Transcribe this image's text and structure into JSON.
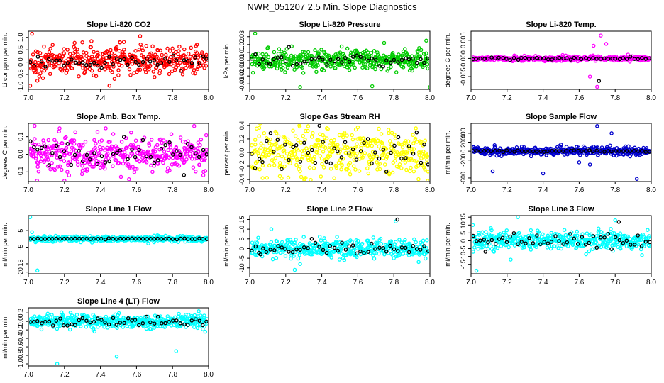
{
  "figure": {
    "title": "NWR_051207  2.5 Min. Slope Diagnostics"
  },
  "chart_data": [
    {
      "type": "scatter",
      "title": "Slope Li-820 CO2",
      "xlabel": "",
      "ylabel": "Li cor ppm per min.",
      "xlim": [
        7.0,
        8.0
      ],
      "ylim": [
        -1.1,
        1.25
      ],
      "x_ticks": [
        7.0,
        7.2,
        7.4,
        7.6,
        7.8,
        8.0
      ],
      "x_tick_labels": [
        "7.0",
        "7.2",
        "7.4",
        "7.6",
        "7.8",
        "8.0"
      ],
      "y_ticks": [
        -1.0,
        -0.5,
        0.0,
        0.5,
        1.0
      ],
      "y_tick_labels": [
        "-1.0",
        "-0.5",
        "0.0",
        "0.5",
        "1.0"
      ],
      "series": [
        {
          "color": "#ff0000",
          "n": 420,
          "center": 0.05,
          "spread": 0.28,
          "outliers": [
            [
              7.01,
              -0.95
            ],
            [
              7.02,
              1.15
            ],
            [
              7.45,
              -0.95
            ],
            [
              7.62,
              1.05
            ],
            [
              7.35,
              0.85
            ],
            [
              7.05,
              -0.75
            ]
          ]
        },
        {
          "color": "#000000",
          "n": 48,
          "center": 0.0,
          "spread": 0.12,
          "outliers": []
        }
      ]
    },
    {
      "type": "scatter",
      "title": "Slope Li-820 Pressure",
      "xlabel": "",
      "ylabel": "kPa per min.",
      "xlim": [
        7.0,
        8.0
      ],
      "ylim": [
        -0.037,
        0.037
      ],
      "x_ticks": [
        7.0,
        7.2,
        7.4,
        7.6,
        7.8,
        8.0
      ],
      "x_tick_labels": [
        "7.0",
        "7.2",
        "7.4",
        "7.6",
        "7.8",
        "8.0"
      ],
      "y_ticks": [
        -0.03,
        -0.02,
        -0.01,
        0.0,
        0.01,
        0.02,
        0.03
      ],
      "y_tick_labels": [
        "-0.03",
        "-0.02",
        "-0.01",
        "0.00",
        "0.01",
        "0.02",
        "0.03"
      ],
      "series": [
        {
          "color": "#00cc00",
          "n": 420,
          "center": 0.0,
          "spread": 0.006,
          "outliers": [
            [
              7.03,
              0.034
            ],
            [
              7.28,
              -0.034
            ],
            [
              7.68,
              -0.033
            ],
            [
              8.0,
              -0.034
            ],
            [
              7.98,
              0.025
            ]
          ]
        },
        {
          "color": "#000000",
          "n": 48,
          "center": 0.0,
          "spread": 0.004,
          "outliers": []
        }
      ]
    },
    {
      "type": "scatter",
      "title": "Slope Li-820 Temp.",
      "xlabel": "",
      "ylabel": "degrees C per min.",
      "xlim": [
        7.0,
        8.0
      ],
      "ylim": [
        -0.0085,
        0.0075
      ],
      "x_ticks": [
        7.0,
        7.2,
        7.4,
        7.6,
        7.8,
        8.0
      ],
      "x_tick_labels": [
        "7.0",
        "7.2",
        "7.4",
        "7.6",
        "7.8",
        "8.0"
      ],
      "y_ticks": [
        -0.005,
        0.0,
        0.005
      ],
      "y_tick_labels": [
        "-0.005",
        "0.000",
        "0.005"
      ],
      "series": [
        {
          "color": "#ff00ff",
          "n": 420,
          "center": 0.0,
          "spread": 0.0003,
          "outliers": [
            [
              7.7,
              -0.0078
            ],
            [
              7.72,
              0.0063
            ],
            [
              7.66,
              -0.005
            ],
            [
              7.75,
              0.004
            ],
            [
              7.68,
              0.0035
            ]
          ]
        },
        {
          "color": "#000000",
          "n": 48,
          "center": 0.0,
          "spread": 0.0002,
          "outliers": [
            [
              7.71,
              -0.0062
            ]
          ]
        }
      ]
    },
    {
      "type": "scatter",
      "title": "Slope Amb. Box Temp.",
      "xlabel": "",
      "ylabel": "degrees C per min.",
      "xlim": [
        7.0,
        8.0
      ],
      "ylim": [
        -0.155,
        0.175
      ],
      "x_ticks": [
        7.0,
        7.2,
        7.4,
        7.6,
        7.8,
        8.0
      ],
      "x_tick_labels": [
        "7.0",
        "7.2",
        "7.4",
        "7.6",
        "7.8",
        "8.0"
      ],
      "y_ticks": [
        -0.1,
        0.0,
        0.1
      ],
      "y_tick_labels": [
        "-0.1",
        "0.0",
        "0.1"
      ],
      "series": [
        {
          "color": "#ff00ff",
          "n": 420,
          "center": 0.0,
          "spread": 0.055,
          "outliers": [
            [
              7.2,
              -0.15
            ],
            [
              7.92,
              0.16
            ],
            [
              7.17,
              0.13
            ]
          ]
        },
        {
          "color": "#000000",
          "n": 48,
          "center": 0.0,
          "spread": 0.04,
          "outliers": []
        }
      ]
    },
    {
      "type": "scatter",
      "title": "Slope Gas Stream RH",
      "xlabel": "",
      "ylabel": "percent per min.",
      "xlim": [
        7.0,
        8.0
      ],
      "ylim": [
        -0.43,
        0.43
      ],
      "x_ticks": [
        7.0,
        7.2,
        7.4,
        7.6,
        7.8,
        8.0
      ],
      "x_tick_labels": [
        "7.0",
        "7.2",
        "7.4",
        "7.6",
        "7.8",
        "8.0"
      ],
      "y_ticks": [
        -0.4,
        -0.2,
        0.0,
        0.2,
        0.4
      ],
      "y_tick_labels": [
        "-0.4",
        "-0.2",
        "0.0",
        "0.2",
        "0.4"
      ],
      "series": [
        {
          "color": "#ffff00",
          "n": 420,
          "center": 0.0,
          "spread": 0.17,
          "outliers": []
        },
        {
          "color": "#000000",
          "n": 48,
          "center": 0.0,
          "spread": 0.15,
          "outliers": []
        }
      ]
    },
    {
      "type": "scatter",
      "title": "Slope Sample Flow",
      "xlabel": "",
      "ylabel": "ml/min per min.",
      "xlim": [
        7.0,
        8.0
      ],
      "ylim": [
        -680,
        620
      ],
      "x_ticks": [
        7.0,
        7.2,
        7.4,
        7.6,
        7.8,
        8.0
      ],
      "x_tick_labels": [
        "7.0",
        "7.2",
        "7.4",
        "7.6",
        "7.8",
        "8.0"
      ],
      "y_ticks": [
        -600,
        -200,
        0,
        200,
        400
      ],
      "y_tick_labels": [
        "-600",
        "-200",
        "0",
        "200",
        "400"
      ],
      "series": [
        {
          "color": "#0000cc",
          "n": 420,
          "center": 0.0,
          "spread": 45,
          "outliers": [
            [
              7.7,
              560
            ],
            [
              7.92,
              -620
            ],
            [
              7.4,
              -500
            ],
            [
              7.12,
              -450
            ],
            [
              7.66,
              -300
            ],
            [
              7.78,
              400
            ],
            [
              7.6,
              -250
            ]
          ]
        },
        {
          "color": "#000000",
          "n": 48,
          "center": 0.0,
          "spread": 10,
          "outliers": []
        }
      ]
    },
    {
      "type": "scatter",
      "title": "Slope Line 1 Flow",
      "xlabel": "",
      "ylabel": "ml/min per min.",
      "xlim": [
        7.0,
        8.0
      ],
      "ylim": [
        -21,
        14
      ],
      "x_ticks": [
        7.0,
        7.2,
        7.4,
        7.6,
        7.8,
        8.0
      ],
      "x_tick_labels": [
        "7.0",
        "7.2",
        "7.4",
        "7.6",
        "7.8",
        "8.0"
      ],
      "y_ticks": [
        -20,
        -15,
        -5,
        5
      ],
      "y_tick_labels": [
        "-20",
        "-15",
        "-5",
        "5"
      ],
      "series": [
        {
          "color": "#00ffff",
          "n": 420,
          "center": 0.0,
          "spread": 0.8,
          "outliers": [
            [
              7.01,
              13
            ],
            [
              7.05,
              -19
            ],
            [
              7.02,
              4
            ]
          ]
        },
        {
          "color": "#000000",
          "n": 48,
          "center": 0.0,
          "spread": 0.15,
          "outliers": []
        }
      ]
    },
    {
      "type": "scatter",
      "title": "Slope Line 2 Flow",
      "xlabel": "",
      "ylabel": "ml/min per min.",
      "xlim": [
        7.0,
        8.0
      ],
      "ylim": [
        -13,
        17
      ],
      "x_ticks": [
        7.0,
        7.2,
        7.4,
        7.6,
        7.8,
        8.0
      ],
      "x_tick_labels": [
        "7.0",
        "7.2",
        "7.4",
        "7.6",
        "7.8",
        "8.0"
      ],
      "y_ticks": [
        -10,
        -5,
        0,
        5,
        10,
        15
      ],
      "y_tick_labels": [
        "-10",
        "-5",
        "0",
        "5",
        "10",
        "15"
      ],
      "series": [
        {
          "color": "#00ffff",
          "n": 420,
          "center": 0.0,
          "spread": 2.2,
          "outliers": [
            [
              7.25,
              -11
            ],
            [
              7.28,
              -8
            ],
            [
              7.12,
              10
            ],
            [
              7.81,
              14
            ],
            [
              7.8,
              -5
            ],
            [
              7.3,
              6
            ]
          ]
        },
        {
          "color": "#000000",
          "n": 48,
          "center": 0.0,
          "spread": 1.6,
          "outliers": [
            [
              7.82,
              15
            ],
            [
              7.06,
              -3
            ]
          ]
        }
      ]
    },
    {
      "type": "scatter",
      "title": "Slope Line 3 Flow",
      "xlabel": "",
      "ylabel": "ml/min per min.",
      "xlim": [
        7.0,
        8.0
      ],
      "ylim": [
        -21,
        16
      ],
      "x_ticks": [
        7.0,
        7.2,
        7.4,
        7.6,
        7.8,
        8.0
      ],
      "x_tick_labels": [
        "7.0",
        "7.2",
        "7.4",
        "7.6",
        "7.8",
        "8.0"
      ],
      "y_ticks": [
        -15,
        -10,
        -5,
        0,
        5,
        10,
        15
      ],
      "y_tick_labels": [
        "-15",
        "-10",
        "-5",
        "0",
        "5",
        "10",
        "15"
      ],
      "series": [
        {
          "color": "#00ffff",
          "n": 420,
          "center": 0.0,
          "spread": 2.8,
          "outliers": [
            [
              7.03,
              -19
            ],
            [
              7.26,
              15
            ],
            [
              7.01,
              10
            ],
            [
              7.11,
              8
            ],
            [
              7.22,
              -12
            ],
            [
              7.8,
              13
            ]
          ]
        },
        {
          "color": "#000000",
          "n": 48,
          "center": 0.0,
          "spread": 2.0,
          "outliers": [
            [
              7.82,
              12
            ],
            [
              7.08,
              -7
            ]
          ]
        }
      ]
    },
    {
      "type": "scatter",
      "title": "Slope Line 4 (LT) Flow",
      "xlabel": "",
      "ylabel": "ml/min per min.",
      "xlim": [
        7.0,
        8.0
      ],
      "ylim": [
        -1.05,
        0.32
      ],
      "x_ticks": [
        7.0,
        7.2,
        7.4,
        7.6,
        7.8,
        8.0
      ],
      "x_tick_labels": [
        "7.0",
        "7.2",
        "7.4",
        "7.6",
        "7.8",
        "8.0"
      ],
      "y_ticks": [
        -1.0,
        -0.8,
        -0.6,
        -0.4,
        -0.2,
        0.0,
        0.2
      ],
      "y_tick_labels": [
        "-1.0",
        "-0.8",
        "-0.6",
        "-0.4",
        "-0.2",
        "0.0",
        "0.2"
      ],
      "series": [
        {
          "color": "#00ffff",
          "n": 420,
          "center": 0.0,
          "spread": 0.08,
          "outliers": [
            [
              7.16,
              -1.0
            ],
            [
              7.49,
              -0.83
            ],
            [
              7.82,
              -0.7
            ]
          ]
        },
        {
          "color": "#000000",
          "n": 48,
          "center": 0.0,
          "spread": 0.07,
          "outliers": []
        }
      ]
    }
  ]
}
